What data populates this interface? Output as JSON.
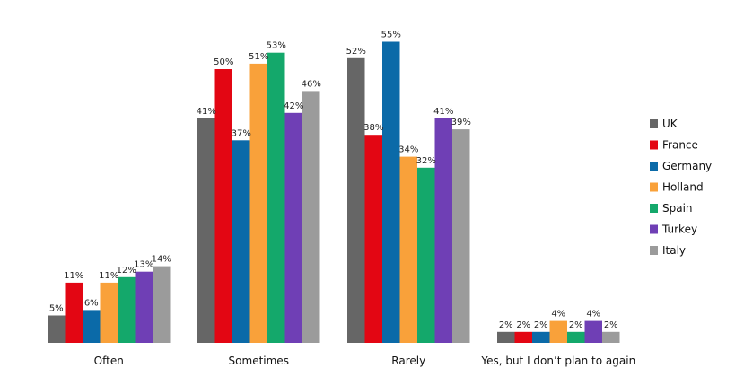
{
  "chart_data": {
    "type": "bar",
    "title": "",
    "xlabel": "",
    "ylabel": "",
    "ylim": [
      0,
      60
    ],
    "grid": false,
    "legend_position": "right",
    "categories": [
      "Often",
      "Sometimes",
      "Rarely",
      "Yes, but I don’t plan to again"
    ],
    "series": [
      {
        "name": "UK",
        "color": "#666666",
        "values": [
          5,
          41,
          52,
          2
        ],
        "labels": [
          "5%",
          "41%",
          "52%",
          "2%"
        ]
      },
      {
        "name": "France",
        "color": "#e30613",
        "values": [
          11,
          50,
          38,
          2
        ],
        "labels": [
          "11%",
          "50%",
          "38%",
          "2%"
        ]
      },
      {
        "name": "Germany",
        "color": "#0b6aa8",
        "values": [
          6,
          37,
          55,
          2
        ],
        "labels": [
          "6%",
          "37%",
          "55%",
          "2%"
        ]
      },
      {
        "name": "Holland",
        "color": "#f9a13a",
        "values": [
          11,
          51,
          34,
          4
        ],
        "labels": [
          "11%",
          "51%",
          "34%",
          "4%"
        ]
      },
      {
        "name": "Spain",
        "color": "#14a86b",
        "values": [
          12,
          53,
          32,
          2
        ],
        "labels": [
          "12%",
          "53%",
          "32%",
          "2%"
        ]
      },
      {
        "name": "Turkey",
        "color": "#6f3fb5",
        "values": [
          13,
          42,
          41,
          4
        ],
        "labels": [
          "13%",
          "42%",
          "41%",
          "4%"
        ]
      },
      {
        "name": "Italy",
        "color": "#9b9b9b",
        "values": [
          14,
          46,
          39,
          2
        ],
        "labels": [
          "14%",
          "46%",
          "39%",
          "2%"
        ]
      }
    ]
  }
}
